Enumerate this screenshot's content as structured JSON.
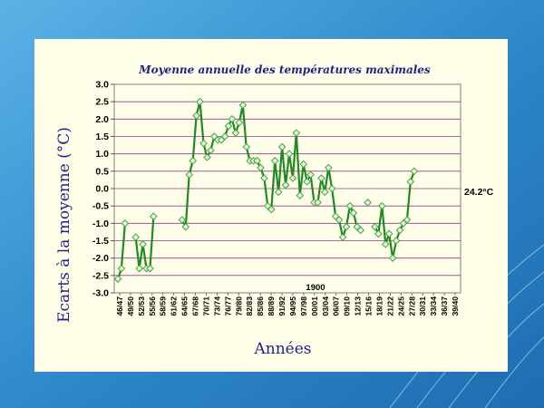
{
  "slide": {
    "background_color": "#2C86C8",
    "card_color": "#FFFFE9"
  },
  "chart_data": {
    "type": "line",
    "title": "Moyenne annuelle des températures maximales",
    "xlabel": "Années",
    "ylabel": "Ecarts  à  la moyenne  (°C)",
    "ylim": [
      -3.0,
      3.0
    ],
    "yticks": [
      "3.0",
      "2.5",
      "2.0",
      "1.5",
      "1.0",
      "0.5",
      "0.0",
      "-0.5",
      "-1.0",
      "-1.5",
      "-2.0",
      "-2.5",
      "-3.0"
    ],
    "xtick_labels": [
      "46/47",
      "49/50",
      "52/53",
      "55/56",
      "58/59",
      "61/62",
      "64/65",
      "67/68",
      "70/71",
      "73/74",
      "76/77",
      "79/80",
      "82/83",
      "85/86",
      "88/89",
      "91/92",
      "94/95",
      "97/98",
      "00/01",
      "03/04",
      "06/07",
      "09/10",
      "12/13",
      "15/16",
      "18/19",
      "21/22",
      "24/25",
      "27/28",
      "30/31",
      "33/34",
      "36/37",
      "39/40"
    ],
    "grid": "horizontal",
    "line_color": "#1F8A1F",
    "marker_color": "#3DA53D",
    "annotation": "1900",
    "mean_label": "24.2°C",
    "series": [
      {
        "name": "",
        "x": [
          0,
          1,
          2,
          3,
          4,
          5,
          6,
          7,
          8,
          9,
          10,
          11,
          12,
          13,
          14,
          15,
          16,
          17,
          18,
          19,
          20,
          21,
          22,
          23,
          24,
          25,
          26,
          27,
          28,
          29,
          30,
          31,
          32,
          33,
          34,
          35,
          36,
          37,
          38,
          39,
          40,
          41,
          42,
          43,
          44,
          45,
          46,
          47,
          48,
          49,
          50,
          51,
          52,
          53,
          54,
          55,
          56,
          57,
          58,
          59,
          60,
          61,
          62,
          63,
          64,
          65,
          66,
          67,
          68,
          69,
          70,
          71,
          72,
          73,
          74,
          75,
          76,
          77,
          78,
          79,
          80,
          81,
          82,
          83,
          84,
          85,
          86,
          87,
          88,
          89,
          90,
          91,
          92,
          93,
          94,
          95
        ],
        "values": [
          -2.6,
          -2.3,
          -1.0,
          null,
          null,
          -1.4,
          -2.3,
          -1.6,
          -2.3,
          -2.3,
          -0.8,
          null,
          null,
          null,
          null,
          null,
          null,
          null,
          -0.9,
          -1.1,
          0.4,
          0.8,
          2.1,
          2.5,
          1.3,
          0.9,
          1.1,
          1.5,
          1.4,
          1.4,
          1.5,
          1.8,
          2.0,
          1.6,
          1.9,
          2.4,
          1.2,
          0.8,
          0.8,
          0.8,
          0.6,
          0.3,
          -0.5,
          -0.6,
          0.8,
          -0.1,
          1.2,
          0.1,
          1.0,
          0.3,
          1.6,
          -0.2,
          0.7,
          0.2,
          0.4,
          -0.4,
          -0.4,
          0.3,
          -0.1,
          0.6,
          0.0,
          -0.8,
          -0.9,
          -1.4,
          -1.1,
          -0.5,
          -0.7,
          -1.1,
          -1.2,
          null,
          -0.4,
          null,
          -1.1,
          -1.3,
          -0.5,
          -1.6,
          -1.3,
          -2.0,
          -1.5,
          -1.2,
          -1.0,
          -0.9,
          0.2,
          0.5,
          null,
          null,
          null,
          null,
          null,
          null,
          null,
          null,
          null,
          null,
          null,
          null
        ]
      }
    ]
  }
}
